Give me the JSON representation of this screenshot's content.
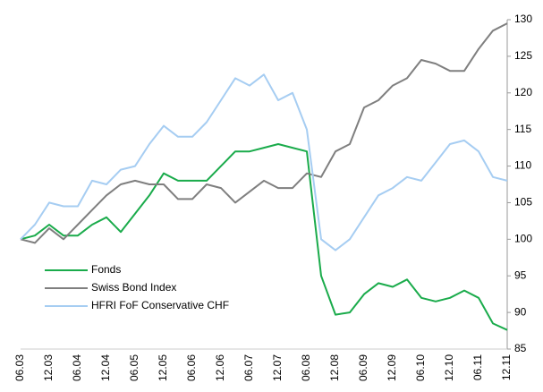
{
  "chart_data": {
    "type": "line",
    "categories": [
      "06.03",
      null,
      "12.03",
      null,
      "06.04",
      null,
      "12.04",
      null,
      "06.05",
      null,
      "12.05",
      null,
      "06.06",
      null,
      "12.06",
      null,
      "06.07",
      null,
      "12.07",
      null,
      "06.08",
      null,
      "12.08",
      null,
      "06.09",
      null,
      "12.09",
      null,
      "06.10",
      null,
      "12.10",
      null,
      "06.11",
      null,
      "12.11"
    ],
    "series": [
      {
        "name": "Fonds",
        "color": "#1aab4b",
        "values": [
          100,
          100.5,
          102,
          100.5,
          100.5,
          102,
          103,
          101,
          103.5,
          106,
          109,
          108,
          108,
          108,
          110,
          112,
          112,
          112.5,
          113,
          112.5,
          112,
          95,
          89.7,
          90,
          92.5,
          94,
          93.5,
          94.5,
          92,
          91.5,
          92,
          93,
          92,
          88.5,
          87.6
        ]
      },
      {
        "name": "Swiss Bond Index",
        "color": "#7f7f7f",
        "values": [
          100,
          99.5,
          101.5,
          100,
          102,
          104,
          106,
          107.5,
          108,
          107.5,
          107.5,
          105.5,
          105.5,
          107.5,
          107,
          105,
          106.5,
          108,
          107,
          107,
          109,
          108.5,
          112,
          113,
          118,
          119,
          121,
          122,
          124.5,
          124,
          123,
          123,
          126,
          128.5,
          129.5
        ]
      },
      {
        "name": "HFRI FoF Conservative CHF",
        "color": "#a6cdf2",
        "values": [
          100,
          102,
          105,
          104.5,
          104.5,
          108,
          107.5,
          109.5,
          110,
          113,
          115.5,
          114,
          114,
          116,
          119,
          122,
          121,
          122.5,
          119,
          120,
          115,
          100,
          98.5,
          100,
          103,
          106,
          107,
          108.5,
          108,
          110.5,
          113,
          113.5,
          112,
          108.5,
          108
        ]
      }
    ],
    "ylim": [
      85,
      130
    ],
    "yticks": [
      85,
      90,
      95,
      100,
      105,
      110,
      115,
      120,
      125,
      130
    ],
    "y_axis_side": "right",
    "grid": false,
    "legend": "lower left"
  }
}
